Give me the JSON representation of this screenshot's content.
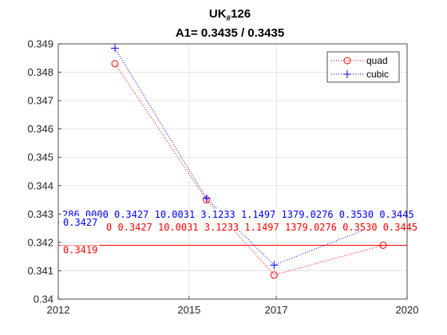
{
  "chart_data": {
    "type": "line",
    "title": "UK",
    "title_subscript": "#",
    "title_suffix": "126",
    "subtitle": "A1= 0.3435 / 0.3435",
    "xlim": [
      2012,
      2020
    ],
    "ylim": [
      0.34,
      0.349
    ],
    "x_ticks": [
      2012,
      2015,
      2017,
      2020
    ],
    "x_tick_labels": [
      "2012",
      "2015",
      "2017",
      "2020"
    ],
    "y_ticks": [
      0.34,
      0.341,
      0.342,
      0.343,
      0.344,
      0.345,
      0.346,
      0.347,
      0.348,
      0.349
    ],
    "y_tick_labels": [
      "0.34",
      "0.341",
      "0.342",
      "0.343",
      "0.344",
      "0.345",
      "0.346",
      "0.347",
      "0.348",
      "0.349"
    ],
    "grid": true,
    "legend_position": "top-right",
    "series": [
      {
        "name": "quad",
        "color": "#ff0000",
        "marker": "circle",
        "x": [
          2013.3,
          2015.4,
          2016.95,
          2019.45
        ],
        "y": [
          0.3483,
          0.3435,
          0.34085,
          0.3419
        ]
      },
      {
        "name": "cubic",
        "color": "#0000ff",
        "marker": "plus",
        "x": [
          2013.3,
          2015.4,
          2016.95,
          2019.45
        ],
        "y": [
          0.34885,
          0.34355,
          0.3412,
          0.3427
        ]
      }
    ],
    "reference_lines": [
      {
        "y": 0.3427,
        "color": "#0000ff",
        "label": "0.3427"
      },
      {
        "y": 0.3419,
        "color": "#ff0000",
        "label": "0.3419"
      }
    ],
    "annotations": [
      {
        "color": "#0000ff",
        "text": "286.0000  0.3427  10.0031  3.1233  1.1497  1379.0276  0.3530  0.3445"
      },
      {
        "color": "#ff0000",
        "text": "0  0.3427  10.0031  3.1233  1.1497  1379.0276  0.3530  0.3445"
      }
    ]
  }
}
